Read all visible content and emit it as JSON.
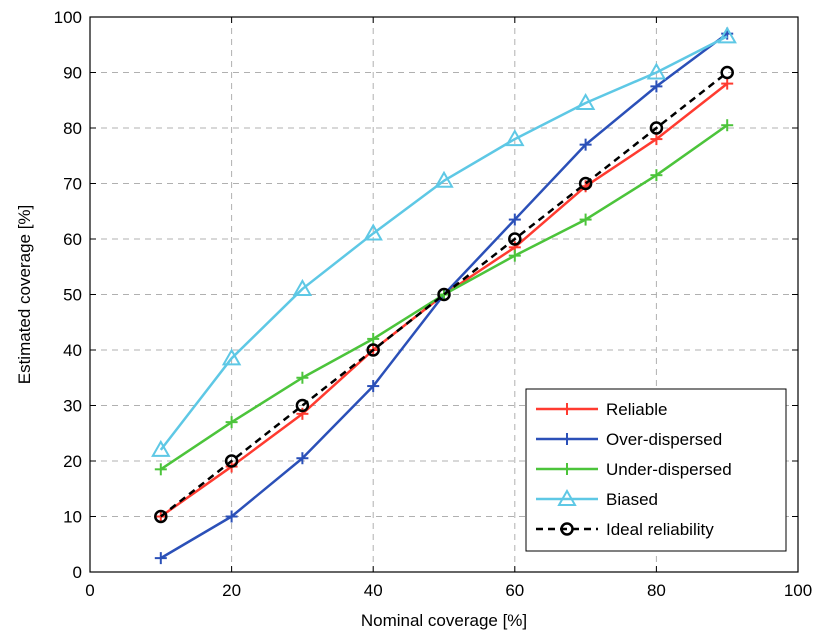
{
  "chart_data": {
    "type": "line",
    "xlabel": "Nominal coverage [%]",
    "ylabel": "Estimated coverage [%]",
    "xlim": [
      0,
      100
    ],
    "ylim": [
      0,
      100
    ],
    "xticks": [
      0,
      20,
      40,
      60,
      80,
      100
    ],
    "yticks": [
      0,
      10,
      20,
      30,
      40,
      50,
      60,
      70,
      80,
      90,
      100
    ],
    "grid": true,
    "grid_style": "dashed",
    "legend_position": "bottom-right",
    "x": [
      10,
      20,
      30,
      40,
      50,
      60,
      70,
      80,
      90
    ],
    "series": [
      {
        "name": "Reliable",
        "color": "#ff3b30",
        "marker": "plus",
        "dash": false,
        "values": [
          10,
          19,
          28.5,
          40,
          50,
          58.5,
          69.5,
          78,
          88
        ]
      },
      {
        "name": "Over-dispersed",
        "color": "#2b50b8",
        "marker": "plus",
        "dash": false,
        "values": [
          2.5,
          10,
          20.5,
          33.5,
          50,
          63.5,
          77,
          87.5,
          97
        ]
      },
      {
        "name": "Under-dispersed",
        "color": "#4cc43b",
        "marker": "plus",
        "dash": false,
        "values": [
          18.5,
          27,
          35,
          42,
          50,
          57,
          63.5,
          71.5,
          80.5
        ]
      },
      {
        "name": "Biased",
        "color": "#5ec8e5",
        "marker": "triangle",
        "dash": false,
        "values": [
          22,
          38.5,
          51,
          61,
          70.5,
          78,
          84.5,
          90,
          96.5
        ]
      },
      {
        "name": "Ideal reliability",
        "color": "#000000",
        "marker": "circle",
        "dash": true,
        "values": [
          10,
          20,
          30,
          40,
          50,
          60,
          70,
          80,
          90
        ]
      }
    ]
  }
}
